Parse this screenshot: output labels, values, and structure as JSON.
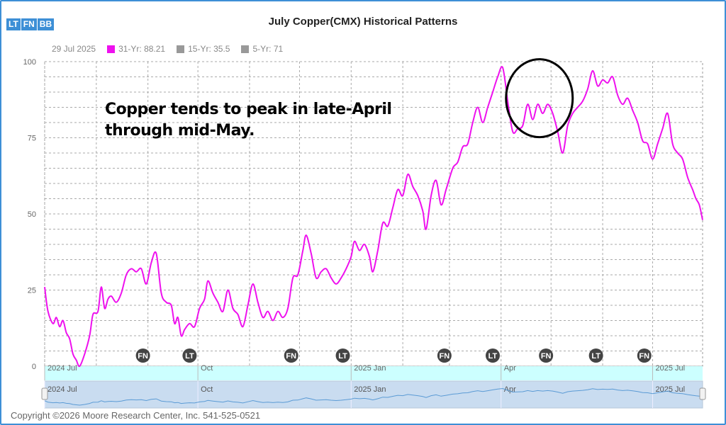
{
  "toolbar": {
    "badges": [
      "LT",
      "FN",
      "BB"
    ]
  },
  "header": {
    "title": "July Copper(CMX) Historical Patterns"
  },
  "legend": {
    "date": "29 Jul 2025",
    "items": [
      {
        "label": "31-Yr: 88.21",
        "color": "#ee11ee"
      },
      {
        "label": "15-Yr: 35.5",
        "color": "#999999"
      },
      {
        "label": "5-Yr: 71",
        "color": "#999999"
      }
    ]
  },
  "annotation": {
    "line1": "Copper tends to peak in late-April",
    "line2": "through mid-May."
  },
  "footer": {
    "copyright": "Copyright ©2026 Moore Research Center, Inc. 541-525-0521"
  },
  "colors": {
    "series": "#ee11ee",
    "navigator_line": "#5b9bd5",
    "navigator_fill": "#c9dcf0",
    "event_band": "#ccffff",
    "marker": "#444444"
  },
  "chart_data": {
    "type": "line",
    "ylim": [
      0,
      100
    ],
    "y_ticks": [
      0,
      25,
      50,
      75,
      100
    ],
    "x_range": [
      "2024-07-01",
      "2025-07-31"
    ],
    "x_ticks": [
      {
        "label": "2024 Jul",
        "date": "2024-07-01"
      },
      {
        "label": "Oct",
        "date": "2024-10-01"
      },
      {
        "label": "2025 Jan",
        "date": "2025-01-01"
      },
      {
        "label": "Apr",
        "date": "2025-04-01"
      },
      {
        "label": "2025 Jul",
        "date": "2025-07-01"
      }
    ],
    "event_markers": [
      {
        "label": "FN",
        "date": "2024-08-29"
      },
      {
        "label": "LT",
        "date": "2024-09-26"
      },
      {
        "label": "FN",
        "date": "2024-11-26"
      },
      {
        "label": "LT",
        "date": "2024-12-27"
      },
      {
        "label": "FN",
        "date": "2025-02-26"
      },
      {
        "label": "LT",
        "date": "2025-03-27"
      },
      {
        "label": "FN",
        "date": "2025-04-28"
      },
      {
        "label": "LT",
        "date": "2025-05-28"
      },
      {
        "label": "FN",
        "date": "2025-06-26"
      }
    ],
    "highlight": {
      "date": "2025-04-24",
      "value": 88
    },
    "series": [
      {
        "name": "31-Yr",
        "points": [
          [
            "2024-07-01",
            26
          ],
          [
            "2024-07-03",
            18
          ],
          [
            "2024-07-06",
            14
          ],
          [
            "2024-07-08",
            16
          ],
          [
            "2024-07-10",
            13
          ],
          [
            "2024-07-12",
            15
          ],
          [
            "2024-07-14",
            11
          ],
          [
            "2024-07-16",
            9
          ],
          [
            "2024-07-18",
            4
          ],
          [
            "2024-07-20",
            2
          ],
          [
            "2024-07-22",
            0
          ],
          [
            "2024-07-25",
            4
          ],
          [
            "2024-07-28",
            10
          ],
          [
            "2024-07-30",
            17
          ],
          [
            "2024-08-02",
            18
          ],
          [
            "2024-08-04",
            26
          ],
          [
            "2024-08-06",
            19
          ],
          [
            "2024-08-08",
            22
          ],
          [
            "2024-08-10",
            23
          ],
          [
            "2024-08-13",
            21
          ],
          [
            "2024-08-16",
            24
          ],
          [
            "2024-08-19",
            30
          ],
          [
            "2024-08-22",
            32
          ],
          [
            "2024-08-25",
            31
          ],
          [
            "2024-08-28",
            32
          ],
          [
            "2024-08-31",
            27
          ],
          [
            "2024-09-03",
            34
          ],
          [
            "2024-09-06",
            37
          ],
          [
            "2024-09-09",
            24
          ],
          [
            "2024-09-12",
            21
          ],
          [
            "2024-09-15",
            20
          ],
          [
            "2024-09-17",
            14
          ],
          [
            "2024-09-19",
            16
          ],
          [
            "2024-09-21",
            10
          ],
          [
            "2024-09-23",
            12
          ],
          [
            "2024-09-26",
            14
          ],
          [
            "2024-09-29",
            13
          ],
          [
            "2024-10-02",
            19
          ],
          [
            "2024-10-05",
            22
          ],
          [
            "2024-10-07",
            28
          ],
          [
            "2024-10-10",
            24
          ],
          [
            "2024-10-13",
            21
          ],
          [
            "2024-10-16",
            18
          ],
          [
            "2024-10-19",
            25
          ],
          [
            "2024-10-22",
            19
          ],
          [
            "2024-10-25",
            17
          ],
          [
            "2024-10-28",
            13
          ],
          [
            "2024-10-31",
            20
          ],
          [
            "2024-11-03",
            27
          ],
          [
            "2024-11-06",
            21
          ],
          [
            "2024-11-09",
            16
          ],
          [
            "2024-11-12",
            18
          ],
          [
            "2024-11-15",
            15
          ],
          [
            "2024-11-18",
            18
          ],
          [
            "2024-11-21",
            16
          ],
          [
            "2024-11-24",
            19
          ],
          [
            "2024-11-27",
            29
          ],
          [
            "2024-11-30",
            30
          ],
          [
            "2024-12-03",
            38
          ],
          [
            "2024-12-05",
            43
          ],
          [
            "2024-12-08",
            37
          ],
          [
            "2024-12-11",
            29
          ],
          [
            "2024-12-14",
            31
          ],
          [
            "2024-12-17",
            32
          ],
          [
            "2024-12-20",
            29
          ],
          [
            "2024-12-23",
            27
          ],
          [
            "2024-12-26",
            29
          ],
          [
            "2024-12-29",
            32
          ],
          [
            "2025-01-01",
            36
          ],
          [
            "2025-01-03",
            41
          ],
          [
            "2025-01-06",
            38
          ],
          [
            "2025-01-09",
            40
          ],
          [
            "2025-01-12",
            36
          ],
          [
            "2025-01-14",
            31
          ],
          [
            "2025-01-17",
            38
          ],
          [
            "2025-01-20",
            47
          ],
          [
            "2025-01-23",
            46
          ],
          [
            "2025-01-26",
            52
          ],
          [
            "2025-01-29",
            58
          ],
          [
            "2025-02-01",
            56
          ],
          [
            "2025-02-04",
            63
          ],
          [
            "2025-02-07",
            59
          ],
          [
            "2025-02-10",
            56
          ],
          [
            "2025-02-13",
            51
          ],
          [
            "2025-02-15",
            45
          ],
          [
            "2025-02-18",
            56
          ],
          [
            "2025-02-21",
            61
          ],
          [
            "2025-02-24",
            53
          ],
          [
            "2025-02-27",
            58
          ],
          [
            "2025-03-03",
            65
          ],
          [
            "2025-03-06",
            67
          ],
          [
            "2025-03-09",
            72
          ],
          [
            "2025-03-12",
            73
          ],
          [
            "2025-03-15",
            80
          ],
          [
            "2025-03-18",
            85
          ],
          [
            "2025-03-21",
            80
          ],
          [
            "2025-03-24",
            85
          ],
          [
            "2025-03-27",
            90
          ],
          [
            "2025-03-30",
            95
          ],
          [
            "2025-04-02",
            98
          ],
          [
            "2025-04-05",
            87
          ],
          [
            "2025-04-08",
            77
          ],
          [
            "2025-04-11",
            78
          ],
          [
            "2025-04-14",
            79
          ],
          [
            "2025-04-17",
            86
          ],
          [
            "2025-04-20",
            81
          ],
          [
            "2025-04-23",
            86
          ],
          [
            "2025-04-26",
            83
          ],
          [
            "2025-04-29",
            86
          ],
          [
            "2025-05-02",
            83
          ],
          [
            "2025-05-05",
            77
          ],
          [
            "2025-05-08",
            70
          ],
          [
            "2025-05-11",
            79
          ],
          [
            "2025-05-14",
            83
          ],
          [
            "2025-05-17",
            85
          ],
          [
            "2025-05-20",
            87
          ],
          [
            "2025-05-23",
            91
          ],
          [
            "2025-05-26",
            97
          ],
          [
            "2025-05-29",
            92
          ],
          [
            "2025-06-01",
            94
          ],
          [
            "2025-06-04",
            93
          ],
          [
            "2025-06-07",
            95
          ],
          [
            "2025-06-10",
            89
          ],
          [
            "2025-06-13",
            86
          ],
          [
            "2025-06-16",
            88
          ],
          [
            "2025-06-19",
            84
          ],
          [
            "2025-06-22",
            80
          ],
          [
            "2025-06-25",
            74
          ],
          [
            "2025-06-28",
            73
          ],
          [
            "2025-07-01",
            68
          ],
          [
            "2025-07-04",
            73
          ],
          [
            "2025-07-07",
            78
          ],
          [
            "2025-07-10",
            83
          ],
          [
            "2025-07-13",
            73
          ],
          [
            "2025-07-16",
            70
          ],
          [
            "2025-07-19",
            68
          ],
          [
            "2025-07-22",
            62
          ],
          [
            "2025-07-25",
            58
          ],
          [
            "2025-07-27",
            55
          ],
          [
            "2025-07-29",
            53
          ],
          [
            "2025-07-31",
            48
          ]
        ]
      }
    ]
  }
}
